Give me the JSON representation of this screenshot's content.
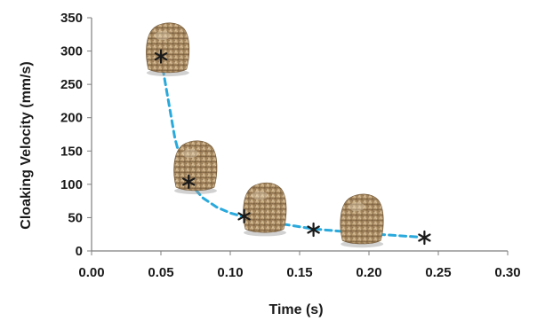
{
  "chart_data": {
    "type": "scatter",
    "title": "",
    "xlabel": "Time (s)",
    "ylabel": "Cloaking Velocity (mm/s)",
    "xlim": [
      0.0,
      0.3
    ],
    "ylim": [
      0,
      350
    ],
    "x_ticks": [
      "0.00",
      "0.05",
      "0.10",
      "0.15",
      "0.20",
      "0.25",
      "0.30"
    ],
    "y_ticks": [
      "0",
      "50",
      "100",
      "150",
      "200",
      "250",
      "300",
      "350"
    ],
    "grid": false,
    "legend": "none",
    "series": [
      {
        "marker": "asterisk",
        "color": "#1a1a1a",
        "points": [
          {
            "x": 0.05,
            "y": 292
          },
          {
            "x": 0.07,
            "y": 104
          },
          {
            "x": 0.11,
            "y": 52
          },
          {
            "x": 0.16,
            "y": 32
          },
          {
            "x": 0.24,
            "y": 20
          }
        ]
      }
    ],
    "trendline": {
      "style": "dashed",
      "color": "#29a9dc",
      "type": "power",
      "points": [
        {
          "x": 0.05,
          "y": 290
        },
        {
          "x": 0.055,
          "y": 230
        },
        {
          "x": 0.06,
          "y": 170
        },
        {
          "x": 0.065,
          "y": 130
        },
        {
          "x": 0.07,
          "y": 104
        },
        {
          "x": 0.08,
          "y": 80
        },
        {
          "x": 0.09,
          "y": 66
        },
        {
          "x": 0.1,
          "y": 57
        },
        {
          "x": 0.11,
          "y": 51
        },
        {
          "x": 0.13,
          "y": 43
        },
        {
          "x": 0.16,
          "y": 33
        },
        {
          "x": 0.2,
          "y": 26
        },
        {
          "x": 0.235,
          "y": 21
        }
      ]
    }
  },
  "images": [
    {
      "name": "droplet-image-1",
      "x": 0.055,
      "y": 302
    },
    {
      "name": "droplet-image-2",
      "x": 0.075,
      "y": 125
    },
    {
      "name": "droplet-image-3",
      "x": 0.125,
      "y": 62
    },
    {
      "name": "droplet-image-4",
      "x": 0.195,
      "y": 45
    }
  ]
}
